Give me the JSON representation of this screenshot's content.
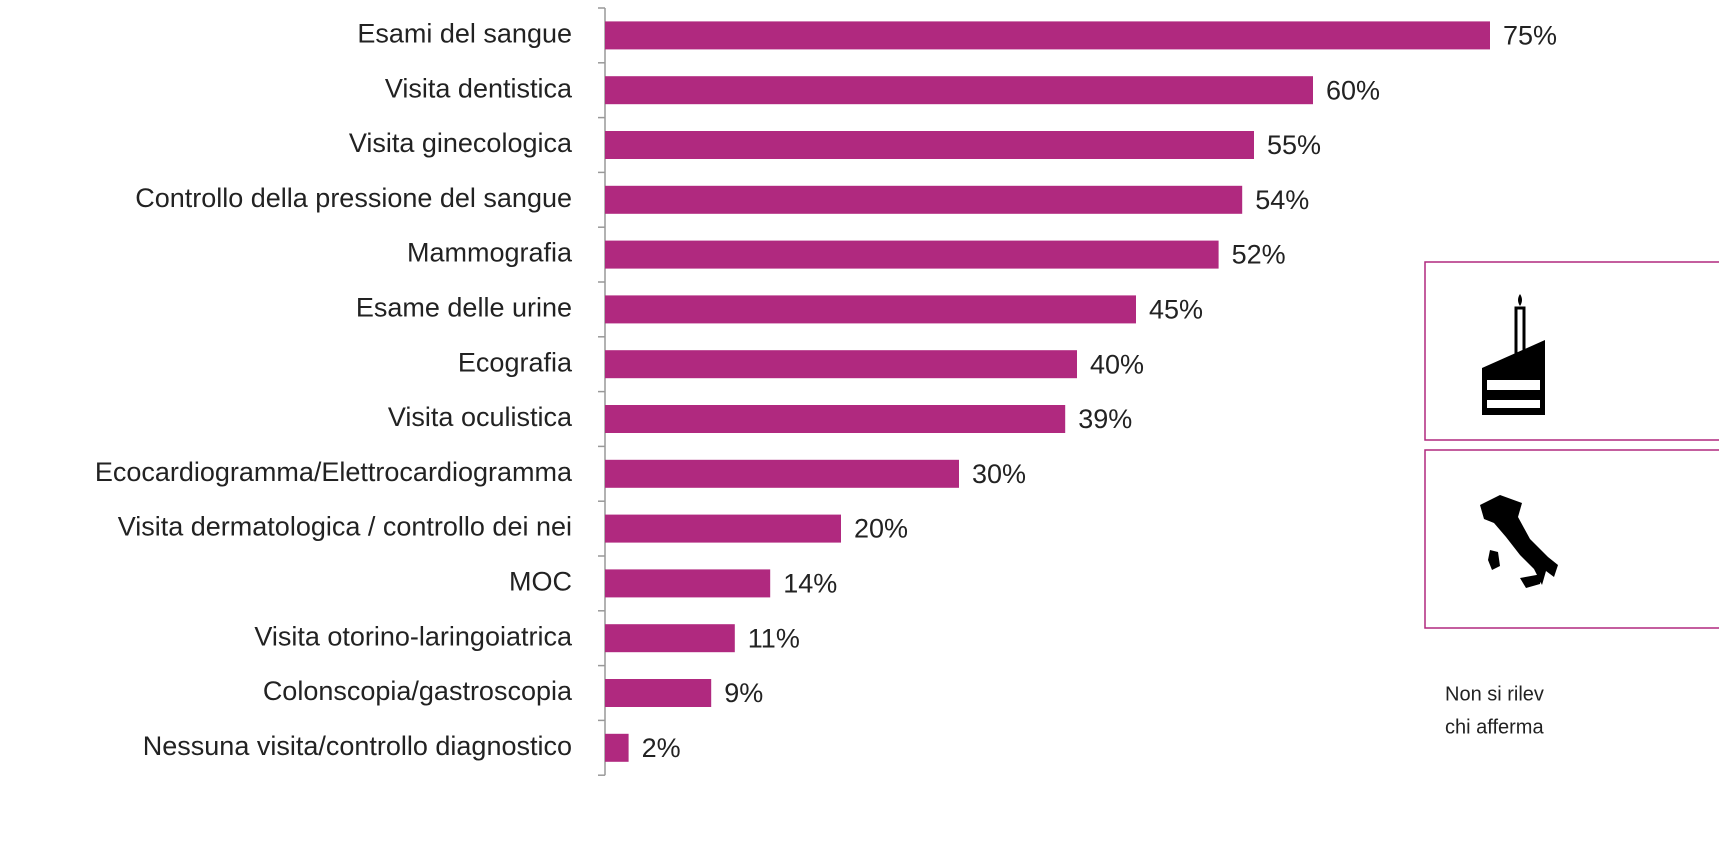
{
  "chart_data": {
    "type": "bar",
    "orientation": "horizontal",
    "categories": [
      "Esami del sangue",
      "Visita dentistica",
      "Visita ginecologica",
      "Controllo della pressione del sangue",
      "Mammografia",
      "Esame delle urine",
      "Ecografia",
      "Visita oculistica",
      "Ecocardiogramma/Elettrocardiogramma",
      "Visita dermatologica / controllo dei nei",
      "MOC",
      "Visita otorino-laringoiatrica",
      "Colonscopia/gastroscopia",
      "Nessuna visita/controllo diagnostico"
    ],
    "values": [
      75,
      60,
      55,
      54,
      52,
      45,
      40,
      39,
      30,
      20,
      14,
      11,
      9,
      2
    ],
    "value_labels": [
      "75%",
      "60%",
      "55%",
      "54%",
      "52%",
      "45%",
      "40%",
      "39%",
      "30%",
      "20%",
      "14%",
      "11%",
      "9%",
      "2%"
    ],
    "color": "#b0297f"
  },
  "side_note": {
    "lines": [
      "Non si rilev",
      "chi afferma"
    ]
  }
}
